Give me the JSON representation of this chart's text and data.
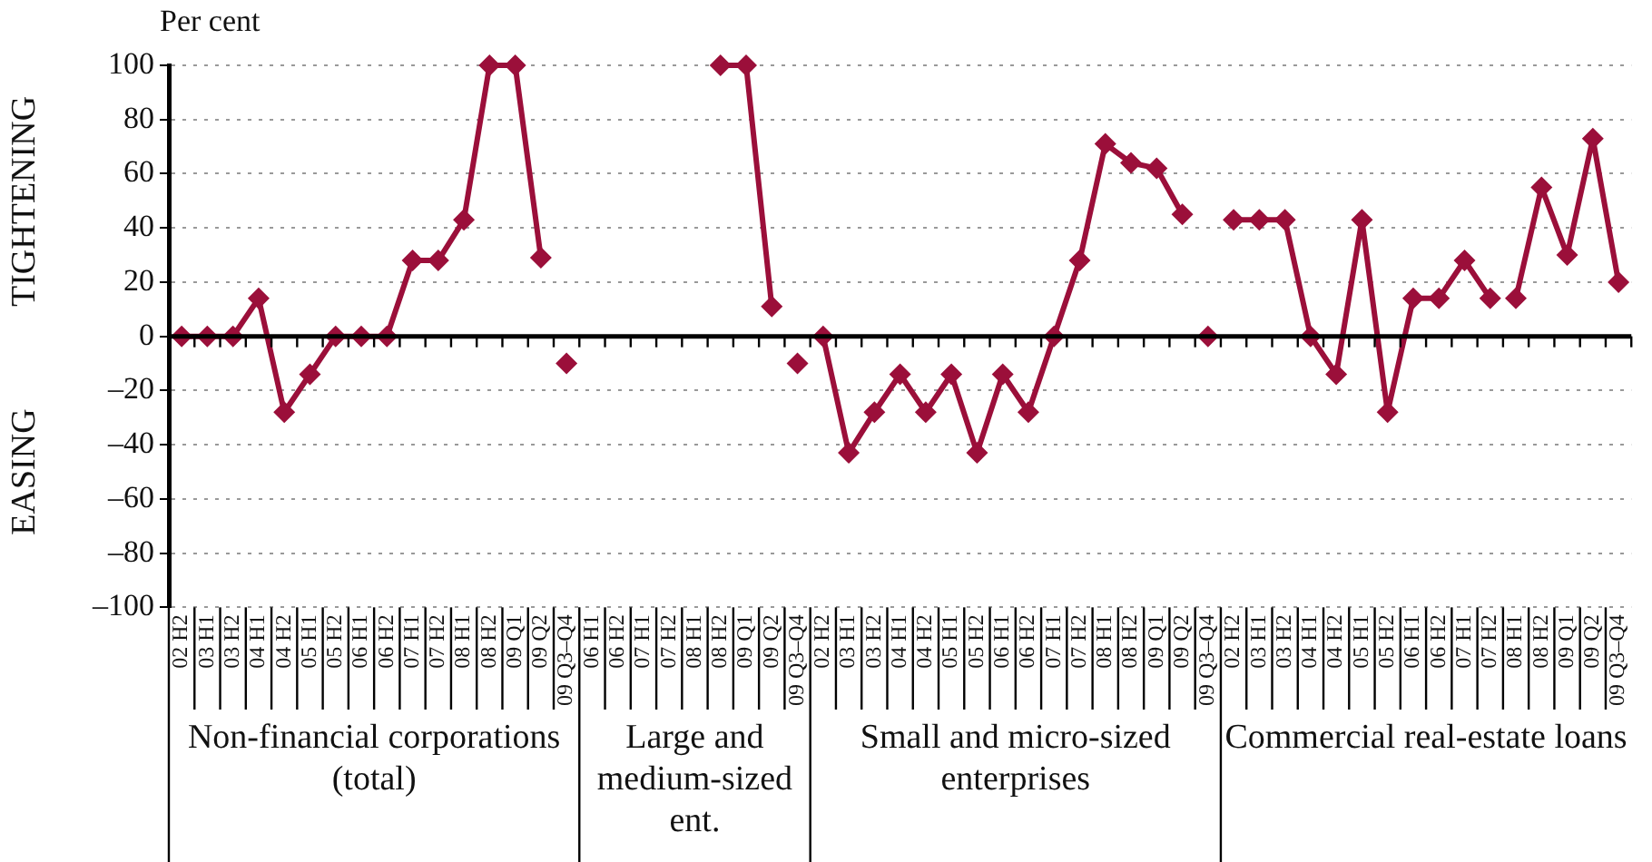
{
  "chart_data": {
    "type": "line",
    "ylabel": "Per cent",
    "categories": [
      "02 H2",
      "03 H1",
      "03 H2",
      "04 H1",
      "04 H2",
      "05 H1",
      "05 H2",
      "06 H1",
      "06 H2",
      "07 H1",
      "07 H2",
      "08 H1",
      "08 H2",
      "09 Q1",
      "09 Q2",
      "09 Q3–Q4",
      "06 H1",
      "06 H2",
      "07 H1",
      "07 H2",
      "08 H1",
      "08 H2",
      "09 Q1",
      "09 Q2",
      "09 Q3–Q4",
      "02 H2",
      "03 H1",
      "03 H2",
      "04 H1",
      "04 H2",
      "05 H1",
      "05 H2",
      "06 H1",
      "06 H2",
      "07 H1",
      "07 H2",
      "08 H1",
      "08 H2",
      "09 Q1",
      "09 Q2",
      "09 Q3–Q4",
      "02 H2",
      "03 H1",
      "03 H2",
      "04 H1",
      "04 H2",
      "05 H1",
      "05 H2",
      "06 H1",
      "06 H2",
      "07 H1",
      "07 H2",
      "08 H1",
      "08 H2",
      "09 Q1",
      "09 Q2",
      "09 Q3–Q4"
    ],
    "series": [
      {
        "color": "#9b0f3a",
        "values": [
          0,
          0,
          0,
          14,
          -28,
          -14,
          0,
          0,
          0,
          28,
          28,
          43,
          100,
          100,
          29,
          null,
          null,
          null,
          null,
          null,
          null,
          null,
          null,
          null,
          null,
          null,
          null,
          null,
          null,
          null,
          null,
          null,
          null,
          null,
          null,
          null,
          null,
          null,
          null,
          null,
          null,
          null,
          null,
          null,
          null,
          null,
          null,
          null,
          null,
          null,
          null,
          null,
          null,
          null,
          null,
          null,
          null
        ]
      },
      {
        "color": "#9b0f3a",
        "values": [
          null,
          null,
          null,
          null,
          null,
          null,
          null,
          null,
          null,
          null,
          null,
          null,
          null,
          null,
          null,
          -10,
          null,
          null,
          null,
          null,
          null,
          null,
          null,
          null,
          null,
          null,
          null,
          null,
          null,
          null,
          null,
          null,
          null,
          null,
          null,
          null,
          null,
          null,
          null,
          null,
          null,
          null,
          null,
          null,
          null,
          null,
          null,
          null,
          null,
          null,
          null,
          null,
          null,
          null,
          null,
          null,
          null
        ]
      },
      {
        "color": "#9b0f3a",
        "values": [
          null,
          null,
          null,
          null,
          null,
          null,
          null,
          null,
          null,
          null,
          null,
          null,
          null,
          null,
          null,
          null,
          null,
          null,
          null,
          null,
          null,
          100,
          100,
          11,
          null,
          null,
          null,
          null,
          null,
          null,
          null,
          null,
          null,
          null,
          null,
          null,
          null,
          null,
          null,
          null,
          null,
          null,
          null,
          null,
          null,
          null,
          null,
          null,
          null,
          null,
          null,
          null,
          null,
          null,
          null,
          null,
          null
        ]
      },
      {
        "color": "#9b0f3a",
        "values": [
          null,
          null,
          null,
          null,
          null,
          null,
          null,
          null,
          null,
          null,
          null,
          null,
          null,
          null,
          null,
          null,
          null,
          null,
          null,
          null,
          null,
          null,
          null,
          null,
          -10,
          null,
          null,
          null,
          null,
          null,
          null,
          null,
          null,
          null,
          null,
          null,
          null,
          null,
          null,
          null,
          null,
          null,
          null,
          null,
          null,
          null,
          null,
          null,
          null,
          null,
          null,
          null,
          null,
          null,
          null,
          null,
          null
        ]
      },
      {
        "color": "#9b0f3a",
        "values": [
          null,
          null,
          null,
          null,
          null,
          null,
          null,
          null,
          null,
          null,
          null,
          null,
          null,
          null,
          null,
          null,
          null,
          null,
          null,
          null,
          null,
          null,
          null,
          null,
          null,
          0,
          -43,
          -28,
          -14,
          -28,
          -14,
          -43,
          -14,
          -28,
          0,
          28,
          71,
          64,
          62,
          45,
          null,
          null,
          null,
          null,
          null,
          null,
          null,
          null,
          null,
          null,
          null,
          null,
          null,
          null,
          null,
          null,
          null
        ]
      },
      {
        "color": "#9b0f3a",
        "values": [
          null,
          null,
          null,
          null,
          null,
          null,
          null,
          null,
          null,
          null,
          null,
          null,
          null,
          null,
          null,
          null,
          null,
          null,
          null,
          null,
          null,
          null,
          null,
          null,
          null,
          null,
          null,
          null,
          null,
          null,
          null,
          null,
          null,
          null,
          null,
          null,
          null,
          null,
          null,
          null,
          0,
          null,
          null,
          null,
          null,
          null,
          null,
          null,
          null,
          null,
          null,
          null,
          null,
          null,
          null,
          null,
          null
        ]
      },
      {
        "color": "#9b0f3a",
        "values": [
          null,
          null,
          null,
          null,
          null,
          null,
          null,
          null,
          null,
          null,
          null,
          null,
          null,
          null,
          null,
          null,
          null,
          null,
          null,
          null,
          null,
          null,
          null,
          null,
          null,
          null,
          null,
          null,
          null,
          null,
          null,
          null,
          null,
          null,
          null,
          null,
          null,
          null,
          null,
          null,
          null,
          43,
          43,
          43,
          0,
          -14,
          43,
          -28,
          14,
          14,
          28,
          14,
          null,
          null,
          null,
          null,
          null
        ]
      },
      {
        "color": "#9b0f3a",
        "values": [
          null,
          null,
          null,
          null,
          null,
          null,
          null,
          null,
          null,
          null,
          null,
          null,
          null,
          null,
          null,
          null,
          null,
          null,
          null,
          null,
          null,
          null,
          null,
          null,
          null,
          null,
          null,
          null,
          null,
          null,
          null,
          null,
          null,
          null,
          null,
          null,
          null,
          null,
          null,
          null,
          null,
          null,
          null,
          null,
          null,
          null,
          null,
          null,
          null,
          null,
          null,
          null,
          14,
          55,
          30,
          73,
          20
        ]
      }
    ],
    "ylim": [
      -100,
      100
    ],
    "yticks": [
      {
        "value": -100,
        "label": "–100"
      },
      {
        "value": -80,
        "label": "–80"
      },
      {
        "value": -60,
        "label": "–60"
      },
      {
        "value": -40,
        "label": "–40"
      },
      {
        "value": -20,
        "label": "–20"
      },
      0,
      20,
      40,
      60,
      80,
      100
    ],
    "grid": "y",
    "legend": false,
    "marker": "diamond",
    "line_style": "solid",
    "annotations": [
      "Non-financial corporations (total)",
      "Large and medium-sized ent.",
      "Small and micro-sized enterprises",
      "Commercial real-estate loans",
      "TIGHTENING",
      "EASING"
    ]
  }
}
